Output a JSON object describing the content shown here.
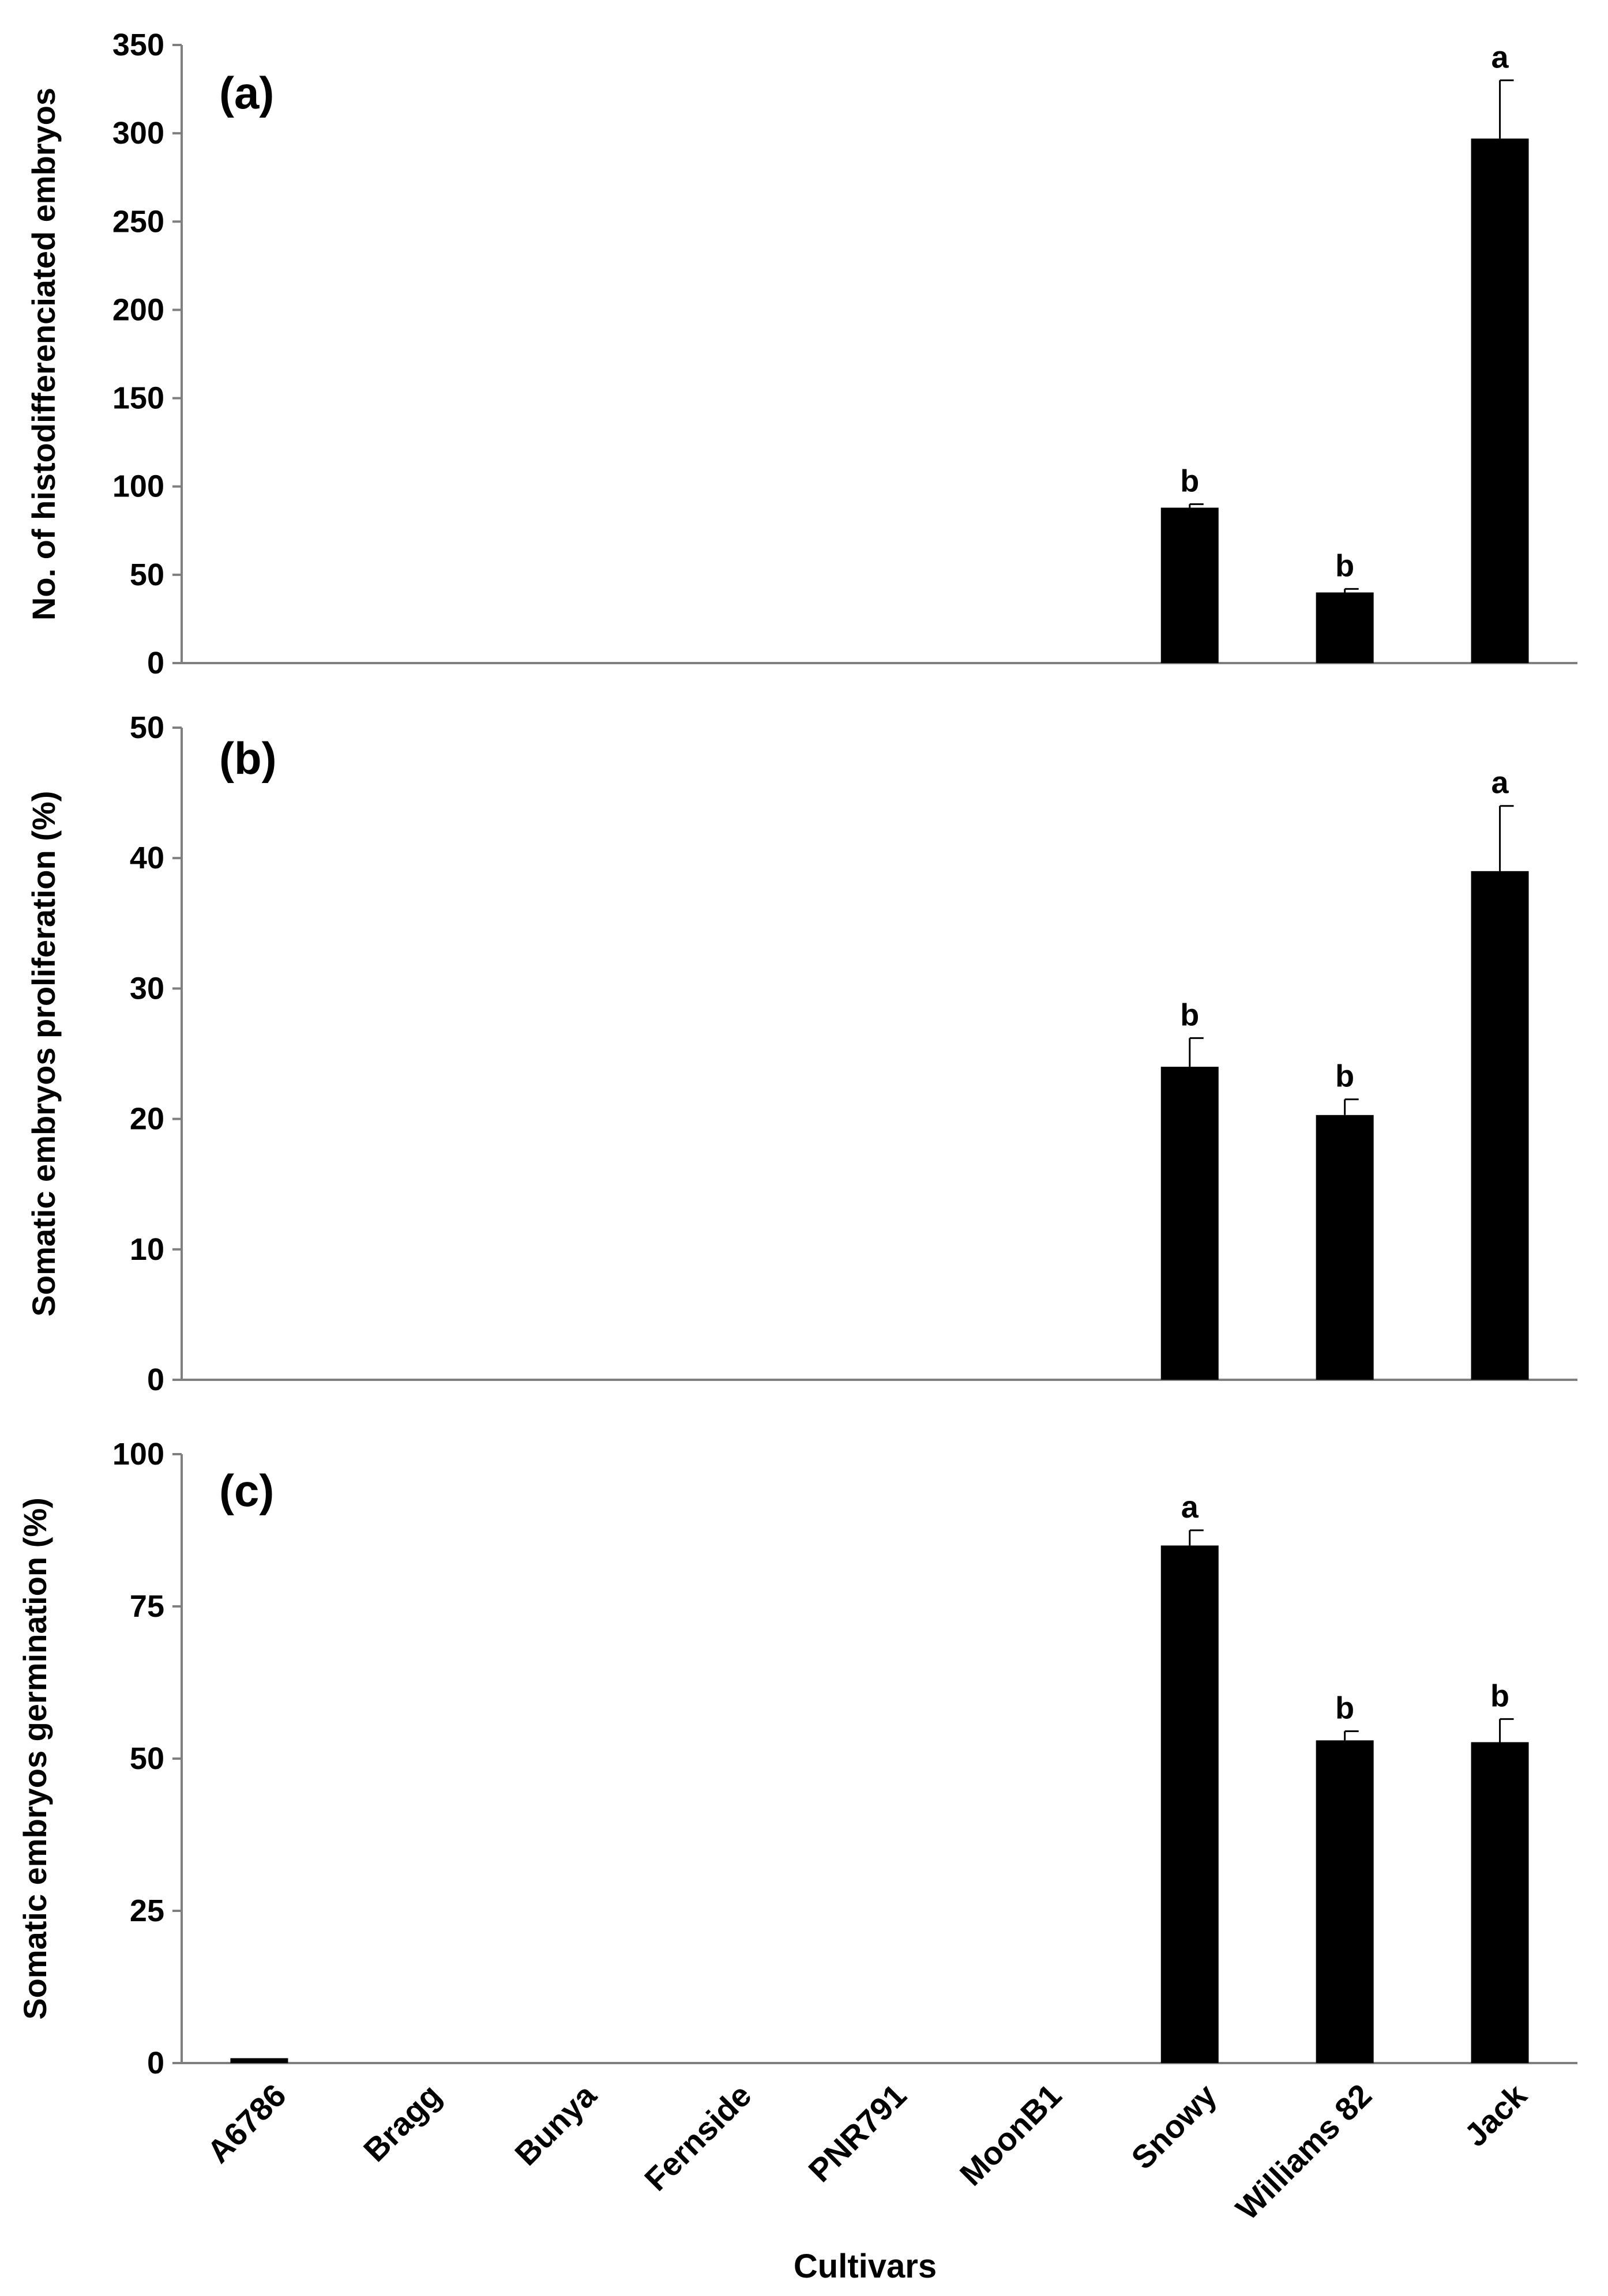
{
  "chart_data": {
    "type": "bar",
    "categories": [
      "A6786",
      "Bragg",
      "Bunya",
      "Fernside",
      "PNR791",
      "MoonB1",
      "Snowy",
      "Williams 82",
      "Jack"
    ],
    "xlabel": "Cultivars",
    "bar_color": "#000000",
    "axis_color": "#7f7f7f",
    "grid": false,
    "legend": "none",
    "panels": [
      {
        "panel_label": "(a)",
        "ylabel": "No. of histodifferenciated  embryos",
        "ylim": [
          0,
          350
        ],
        "yticks": [
          0,
          50,
          100,
          150,
          200,
          250,
          300,
          350
        ],
        "values": [
          0,
          0,
          0,
          0,
          0,
          0,
          88,
          40,
          297
        ],
        "errors": [
          0,
          0,
          0,
          0,
          0,
          0,
          2,
          2,
          33
        ],
        "sig_letters": [
          "",
          "",
          "",
          "",
          "",
          "",
          "b",
          "b",
          "a"
        ]
      },
      {
        "panel_label": "(b)",
        "ylabel": "Somatic  embryos  proliferation  (%)",
        "ylim": [
          0,
          50
        ],
        "yticks": [
          0,
          10,
          20,
          30,
          40,
          50
        ],
        "values": [
          0,
          0,
          0,
          0,
          0,
          0,
          24,
          20.3,
          39
        ],
        "errors": [
          0,
          0,
          0,
          0,
          0,
          0,
          2.2,
          1.2,
          5
        ],
        "sig_letters": [
          "",
          "",
          "",
          "",
          "",
          "",
          "b",
          "b",
          "a"
        ]
      },
      {
        "panel_label": "(c)",
        "ylabel": "Somatic embryos  germination (%)",
        "ylim": [
          0,
          100
        ],
        "yticks": [
          0,
          25,
          50,
          75,
          100
        ],
        "values": [
          0.8,
          0,
          0,
          0,
          0,
          0,
          85,
          53,
          52.7
        ],
        "errors": [
          0,
          0,
          0,
          0,
          0,
          0,
          2.5,
          1.5,
          3.8
        ],
        "sig_letters": [
          "",
          "",
          "",
          "",
          "",
          "",
          "a",
          "b",
          "b"
        ]
      }
    ]
  }
}
